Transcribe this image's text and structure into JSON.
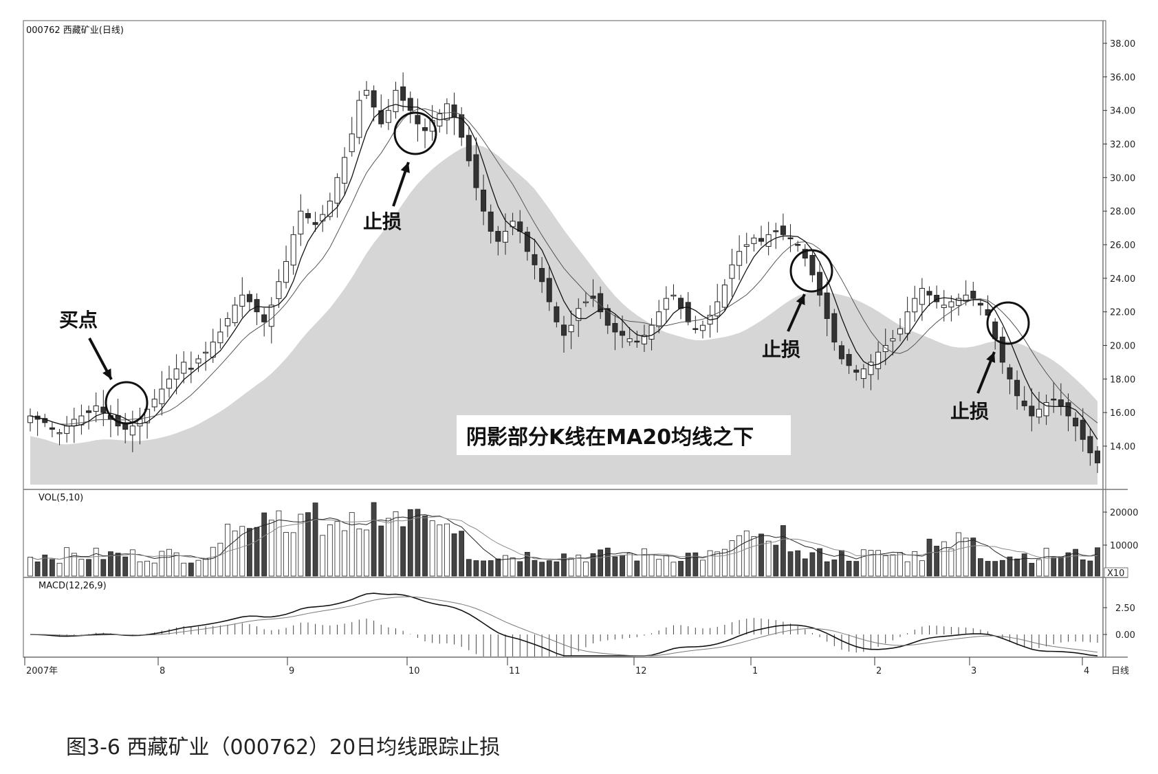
{
  "caption": "图3-6 西藏矿业（000762）20日均线跟踪止损",
  "chart_data": [
    {
      "type": "candlestick",
      "title": "000762 西藏矿业(日线)",
      "y_ticks": [
        "38.00",
        "36.00",
        "34.00",
        "32.00",
        "30.00",
        "28.00",
        "26.00",
        "24.00",
        "22.00",
        "20.00",
        "18.00",
        "16.00",
        "14.00"
      ],
      "ylim": [
        12,
        39
      ],
      "shaded_area_label": "阴影部分K线在MA20均线之下",
      "annotations": [
        {
          "text": "买点",
          "type": "circle-arrow"
        },
        {
          "text": "止损",
          "type": "circle-arrow"
        },
        {
          "text": "止损",
          "type": "circle-arrow"
        },
        {
          "text": "止损",
          "type": "circle-arrow"
        }
      ],
      "approx_close": [
        15.8,
        15.6,
        15.4,
        15.0,
        14.8,
        15.2,
        15.6,
        15.8,
        16.0,
        16.4,
        16.0,
        15.6,
        15.2,
        15.0,
        15.2,
        15.6,
        16.2,
        16.8,
        17.4,
        18.0,
        18.6,
        19.0,
        18.6,
        19.2,
        19.6,
        20.2,
        20.8,
        21.6,
        22.4,
        23.0,
        22.6,
        22.0,
        21.4,
        22.4,
        23.8,
        25.0,
        26.6,
        28.0,
        27.6,
        27.2,
        27.8,
        28.6,
        30.0,
        31.2,
        32.6,
        34.6,
        35.2,
        34.2,
        33.2,
        34.0,
        35.2,
        34.6,
        34.0,
        33.2,
        32.8,
        33.4,
        33.8,
        34.4,
        33.6,
        32.4,
        31.0,
        29.4,
        28.0,
        26.8,
        26.2,
        26.8,
        27.4,
        26.8,
        25.6,
        24.8,
        23.8,
        22.6,
        21.4,
        20.6,
        21.2,
        22.2,
        22.6,
        22.8,
        22.0,
        21.2,
        20.8,
        20.6,
        20.4,
        20.2,
        20.6,
        21.2,
        22.0,
        22.8,
        23.0,
        22.2,
        21.4,
        21.0,
        21.2,
        21.8,
        22.6,
        23.6,
        24.8,
        25.6,
        26.0,
        26.4,
        26.2,
        26.6,
        26.8,
        26.6,
        26.4,
        26.0,
        25.2,
        24.2,
        23.0,
        21.6,
        20.2,
        19.2,
        18.8,
        18.4,
        18.6,
        19.0,
        19.6,
        20.0,
        20.4,
        21.0,
        22.0,
        22.8,
        23.4,
        23.0,
        22.6,
        22.4,
        22.6,
        22.8,
        23.0,
        22.8,
        22.4,
        21.8,
        20.4,
        19.0,
        18.0,
        17.0,
        16.4,
        15.8,
        16.2,
        16.6,
        16.8,
        16.4,
        15.8,
        15.2,
        14.4,
        13.6,
        13.0
      ]
    },
    {
      "type": "bar",
      "title": "VOL(5,10)",
      "y_ticks": [
        "20000",
        "10000"
      ],
      "unit": "X10"
    },
    {
      "type": "line",
      "title": "MACD(12,26,9)",
      "y_ticks": [
        "2.50",
        "0.00"
      ]
    }
  ],
  "x_ticks": [
    "2007年",
    "8",
    "9",
    "10",
    "11",
    "12",
    "1",
    "2",
    "3",
    "4",
    "日线"
  ]
}
